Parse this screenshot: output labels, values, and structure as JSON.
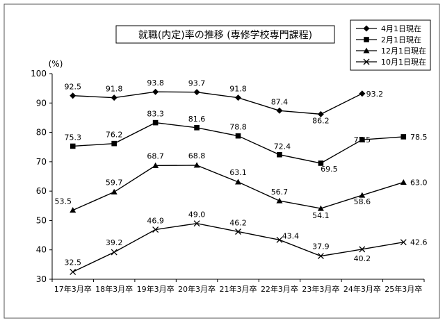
{
  "chart_data": {
    "type": "line",
    "title": "就職(内定)率の推移 (専修学校専門課程)",
    "ylabel": "(%)",
    "xlabel": "",
    "ylim": [
      30,
      100
    ],
    "yticks": [
      30,
      40,
      50,
      60,
      70,
      80,
      90,
      100
    ],
    "categories": [
      "17年3月卒",
      "18年3月卒",
      "19年3月卒",
      "20年3月卒",
      "21年3月卒",
      "22年3月卒",
      "23年3月卒",
      "24年3月卒",
      "25年3月卒"
    ],
    "grid": false,
    "legend_position": "top-right",
    "series": [
      {
        "name": "4月1日現在",
        "marker": "diamond",
        "values": [
          92.5,
          91.8,
          93.8,
          93.7,
          91.8,
          87.4,
          86.2,
          93.2,
          null
        ]
      },
      {
        "name": "2月1日現在",
        "marker": "square",
        "values": [
          75.3,
          76.2,
          83.3,
          81.6,
          78.8,
          72.4,
          69.5,
          77.5,
          78.5
        ]
      },
      {
        "name": "12月1日現在",
        "marker": "triangle",
        "values": [
          53.5,
          59.7,
          68.7,
          68.8,
          63.1,
          56.7,
          54.1,
          58.6,
          63.0
        ]
      },
      {
        "name": "10月1日現在",
        "marker": "x",
        "values": [
          32.5,
          39.2,
          46.9,
          49.0,
          46.2,
          43.4,
          37.9,
          40.2,
          42.6
        ]
      }
    ],
    "data_labels": [
      [
        "92.5",
        "91.8",
        "93.8",
        "93.7",
        "91.8",
        "87.4",
        "86.2",
        "93.2",
        null
      ],
      [
        "75.3",
        "76.2",
        "83.3",
        "81.6",
        "78.8",
        "72.4",
        "69.5",
        "77.5",
        "78.5"
      ],
      [
        "53.5",
        "59.7",
        "68.7",
        "68.8",
        "63.1",
        "56.7",
        "54.1",
        "58.6",
        "63.0"
      ],
      [
        "32.5",
        "39.2",
        "46.9",
        "49.0",
        "46.2",
        "43.4",
        "37.9",
        "40.2",
        "42.6"
      ]
    ]
  }
}
